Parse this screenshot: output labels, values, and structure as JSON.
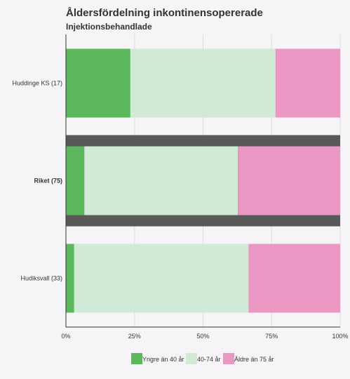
{
  "title": "Åldersfördelning inkontinensopererade",
  "subtitle": "Injektionsbehandlade",
  "chart_data": {
    "type": "bar",
    "orientation": "horizontal",
    "stacked": "percent",
    "title": "Åldersfördelning inkontinensopererade",
    "subtitle": "Injektionsbehandlade",
    "categories": [
      "Huddinge KS (17)",
      "Riket (75)",
      "Hudiksvall (33)"
    ],
    "highlighted_category": "Riket (75)",
    "series": [
      {
        "name": "Yngre än 40 år",
        "values": [
          23.5,
          6.7,
          3.0
        ],
        "color": "#5cb85c"
      },
      {
        "name": "40-74 år",
        "values": [
          52.9,
          56.0,
          63.6
        ],
        "color": "#d1ead5"
      },
      {
        "name": "Äldre än 75 år",
        "values": [
          23.6,
          37.3,
          33.4
        ],
        "color": "#eb97c4"
      }
    ],
    "xlim": [
      0,
      100
    ],
    "x_ticks": [
      "0%",
      "25%",
      "50%",
      "75%",
      "100%"
    ],
    "grid": true,
    "legend_position": "bottom"
  }
}
